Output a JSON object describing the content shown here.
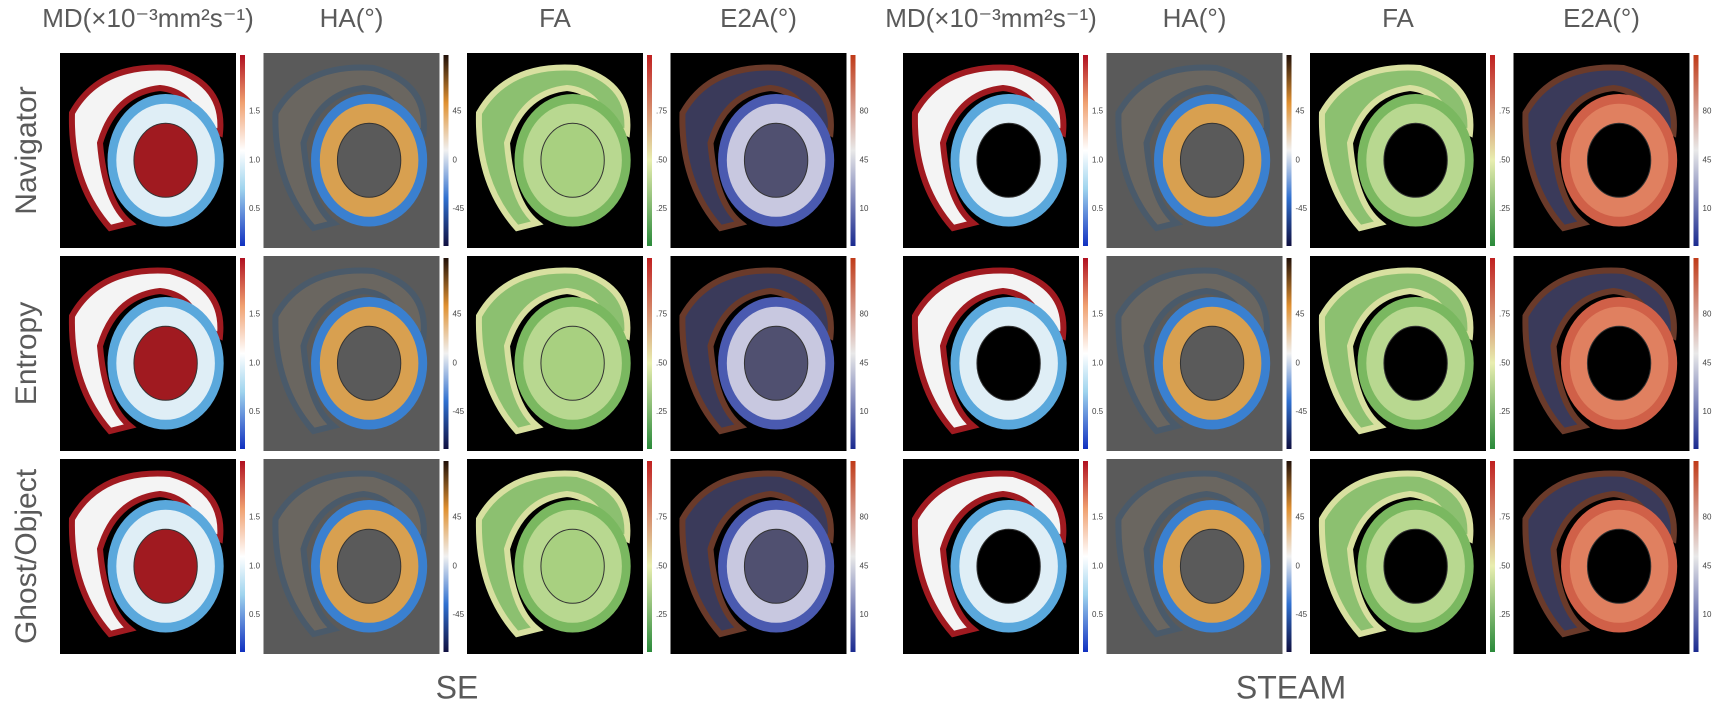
{
  "columns": [
    {
      "header": "MD(×10⁻³mm²s⁻¹)",
      "colorbar_ticks": [
        "1.5",
        "1.0",
        "0.5"
      ]
    },
    {
      "header": "HA(°)",
      "colorbar_ticks": [
        "45",
        "0",
        "-45"
      ]
    },
    {
      "header": "FA",
      "colorbar_ticks": [
        ".75",
        ".50",
        ".25"
      ]
    },
    {
      "header": "E2A(°)",
      "colorbar_ticks": [
        "80",
        "45",
        "10"
      ]
    },
    {
      "header": "MD(×10⁻³mm²s⁻¹)",
      "colorbar_ticks": [
        "1.5",
        "1.0",
        "0.5"
      ]
    },
    {
      "header": "HA(°)",
      "colorbar_ticks": [
        "45",
        "0",
        "-45"
      ]
    },
    {
      "header": "FA",
      "colorbar_ticks": [
        ".75",
        ".50",
        ".25"
      ]
    },
    {
      "header": "E2A(°)",
      "colorbar_ticks": [
        "80",
        "45",
        "10"
      ]
    }
  ],
  "rows": [
    "Navigator",
    "Entropy",
    "Ghost/Object"
  ],
  "groups": [
    "SE",
    "STEAM"
  ]
}
